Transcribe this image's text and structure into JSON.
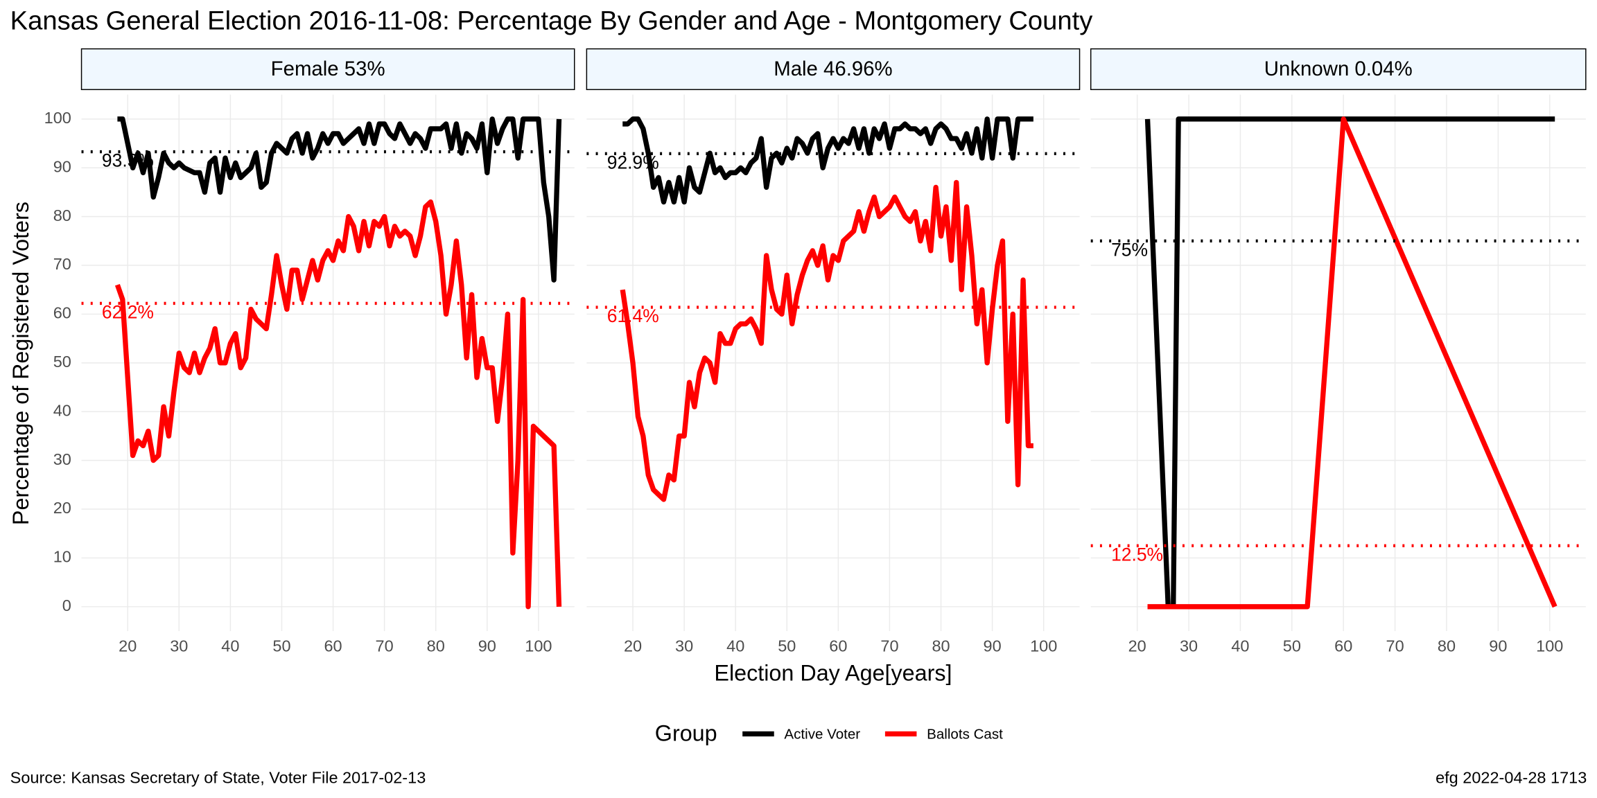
{
  "title": "Kansas General Election 2016-11-08:  Percentage By Gender and Age - Montgomery County",
  "xlabel": "Election Day Age[years]",
  "ylabel": "Percentage of Registered Voters",
  "legend_title": "Group",
  "source": "Source:  Kansas Secretary of State, Voter File  2017-02-13",
  "credit": "efg 2022-04-28 1713",
  "chart_data": [
    {
      "type": "line",
      "title": "Female 53%",
      "xlim": [
        11,
        107
      ],
      "xticks": [
        20,
        30,
        40,
        50,
        60,
        70,
        80,
        90,
        100
      ],
      "ylim": [
        -5,
        105
      ],
      "yticks": [
        0,
        10,
        20,
        30,
        40,
        50,
        60,
        70,
        80,
        90,
        100
      ],
      "grid": true,
      "series": [
        {
          "name": "Active Voter",
          "color": "#000000",
          "x": [
            18,
            19,
            20,
            21,
            22,
            23,
            24,
            25,
            26,
            27,
            28,
            29,
            30,
            31,
            32,
            33,
            34,
            35,
            36,
            37,
            38,
            39,
            40,
            41,
            42,
            43,
            44,
            45,
            46,
            47,
            48,
            49,
            50,
            51,
            52,
            53,
            54,
            55,
            56,
            57,
            58,
            59,
            60,
            61,
            62,
            63,
            64,
            65,
            66,
            67,
            68,
            69,
            70,
            71,
            72,
            73,
            74,
            75,
            76,
            77,
            78,
            79,
            80,
            81,
            82,
            83,
            84,
            85,
            86,
            87,
            88,
            89,
            90,
            91,
            92,
            93,
            94,
            95,
            96,
            97,
            98,
            99,
            100,
            101,
            102,
            103,
            104
          ],
          "values": [
            100,
            100,
            95,
            90,
            93,
            89,
            93,
            84,
            88,
            93,
            91,
            90,
            91,
            90,
            89.5,
            89,
            89,
            85,
            91,
            92,
            85,
            92,
            88,
            91,
            88,
            89,
            90,
            93,
            86,
            87,
            93,
            95,
            94,
            93,
            96,
            97,
            93,
            97,
            92,
            94,
            97,
            95,
            97,
            97,
            95,
            96,
            97,
            98,
            95,
            99,
            95,
            99,
            99,
            97,
            96,
            99,
            97,
            95,
            97,
            96,
            94,
            98,
            98,
            98,
            99,
            94,
            99,
            93,
            97,
            96,
            94,
            99,
            89,
            100,
            95,
            98,
            100,
            100,
            92,
            100,
            100,
            100,
            100,
            87,
            80,
            67,
            100
          ]
        },
        {
          "name": "Ballots Cast",
          "color": "#ff0000",
          "x": [
            18,
            19,
            20,
            21,
            22,
            23,
            24,
            25,
            26,
            27,
            28,
            29,
            30,
            31,
            32,
            33,
            34,
            35,
            36,
            37,
            38,
            39,
            40,
            41,
            42,
            43,
            44,
            45,
            46,
            47,
            48,
            49,
            50,
            51,
            52,
            53,
            54,
            55,
            56,
            57,
            58,
            59,
            60,
            61,
            62,
            63,
            64,
            65,
            66,
            67,
            68,
            69,
            70,
            71,
            72,
            73,
            74,
            75,
            76,
            77,
            78,
            79,
            80,
            81,
            82,
            83,
            84,
            85,
            86,
            87,
            88,
            89,
            90,
            91,
            92,
            93,
            94,
            95,
            96,
            97,
            98,
            99,
            100,
            101,
            102,
            103,
            104
          ],
          "values": [
            66,
            63,
            47,
            31,
            34,
            33,
            36,
            30,
            31,
            41,
            35,
            44,
            52,
            49,
            48,
            52,
            48,
            51,
            53,
            57,
            50,
            50,
            54,
            56,
            49,
            51,
            61,
            59,
            58,
            57,
            64,
            72,
            66,
            61,
            69,
            69,
            63,
            67,
            71,
            67,
            71,
            73,
            71,
            75,
            73,
            80,
            78,
            73,
            79,
            74,
            79,
            78,
            80,
            74,
            78,
            76,
            77,
            76,
            72,
            76,
            82,
            83,
            79,
            72,
            60,
            66,
            75,
            66,
            51,
            64,
            47,
            55,
            49,
            49,
            38,
            47,
            60,
            11,
            30,
            63,
            0,
            37,
            36,
            35,
            34,
            33,
            0
          ]
        }
      ],
      "hlines": [
        {
          "value": 93.3,
          "label": "93.3%",
          "color": "#000000"
        },
        {
          "value": 62.2,
          "label": "62.2%",
          "color": "#ff0000"
        }
      ]
    },
    {
      "type": "line",
      "title": "Male 46.96%",
      "xlim": [
        11,
        107
      ],
      "xticks": [
        20,
        30,
        40,
        50,
        60,
        70,
        80,
        90,
        100
      ],
      "ylim": [
        -5,
        105
      ],
      "yticks": [
        0,
        10,
        20,
        30,
        40,
        50,
        60,
        70,
        80,
        90,
        100
      ],
      "grid": true,
      "series": [
        {
          "name": "Active Voter",
          "color": "#000000",
          "x": [
            18,
            19,
            20,
            21,
            22,
            23,
            24,
            25,
            26,
            27,
            28,
            29,
            30,
            31,
            32,
            33,
            34,
            35,
            36,
            37,
            38,
            39,
            40,
            41,
            42,
            43,
            44,
            45,
            46,
            47,
            48,
            49,
            50,
            51,
            52,
            53,
            54,
            55,
            56,
            57,
            58,
            59,
            60,
            61,
            62,
            63,
            64,
            65,
            66,
            67,
            68,
            69,
            70,
            71,
            72,
            73,
            74,
            75,
            76,
            77,
            78,
            79,
            80,
            81,
            82,
            83,
            84,
            85,
            86,
            87,
            88,
            89,
            90,
            91,
            92,
            93,
            94,
            95,
            96,
            97,
            98
          ],
          "values": [
            99,
            99,
            100,
            100,
            98,
            93,
            86,
            88,
            83,
            87,
            83,
            88,
            83,
            90,
            86,
            85,
            89,
            93,
            89,
            90,
            88,
            89,
            89,
            90,
            89,
            91,
            92,
            96,
            86,
            92,
            93,
            91,
            94,
            92,
            96,
            95,
            93,
            96,
            97,
            90,
            94,
            96,
            94,
            96,
            95,
            98,
            94,
            98,
            93,
            98,
            96,
            99,
            94,
            98,
            98,
            99,
            98,
            98,
            97,
            98,
            95,
            98,
            99,
            98,
            96,
            96,
            94,
            97,
            93,
            98,
            92,
            100,
            92,
            100,
            100,
            100,
            92,
            100,
            100,
            100,
            100
          ]
        },
        {
          "name": "Ballots Cast",
          "color": "#ff0000",
          "x": [
            18,
            19,
            20,
            21,
            22,
            23,
            24,
            25,
            26,
            27,
            28,
            29,
            30,
            31,
            32,
            33,
            34,
            35,
            36,
            37,
            38,
            39,
            40,
            41,
            42,
            43,
            44,
            45,
            46,
            47,
            48,
            49,
            50,
            51,
            52,
            53,
            54,
            55,
            56,
            57,
            58,
            59,
            60,
            61,
            62,
            63,
            64,
            65,
            66,
            67,
            68,
            69,
            70,
            71,
            72,
            73,
            74,
            75,
            76,
            77,
            78,
            79,
            80,
            81,
            82,
            83,
            84,
            85,
            86,
            87,
            88,
            89,
            90,
            91,
            92,
            93,
            94,
            95,
            96,
            97,
            98
          ],
          "values": [
            65,
            58,
            50,
            39,
            35,
            27,
            24,
            23,
            22,
            27,
            26,
            35,
            35,
            46,
            41,
            48,
            51,
            50,
            46,
            56,
            54,
            54,
            57,
            58,
            58,
            59,
            57,
            54,
            72,
            65,
            61,
            60,
            68,
            58,
            64,
            68,
            71,
            73,
            70,
            74,
            67,
            72,
            71,
            75,
            76,
            77,
            81,
            77,
            81,
            84,
            80,
            81,
            82,
            84,
            82,
            80,
            79,
            81,
            75,
            79,
            73,
            86,
            76,
            82,
            71,
            87,
            65,
            82,
            72,
            58,
            65,
            50,
            61,
            70,
            75,
            38,
            60,
            25,
            67,
            33,
            33
          ]
        }
      ],
      "hlines": [
        {
          "value": 92.9,
          "label": "92.9%",
          "color": "#000000"
        },
        {
          "value": 61.4,
          "label": "61.4%",
          "color": "#ff0000"
        }
      ]
    },
    {
      "type": "line",
      "title": "Unknown 0.04%",
      "xlim": [
        11,
        107
      ],
      "xticks": [
        20,
        30,
        40,
        50,
        60,
        70,
        80,
        90,
        100
      ],
      "ylim": [
        -5,
        105
      ],
      "yticks": [
        0,
        10,
        20,
        30,
        40,
        50,
        60,
        70,
        80,
        90,
        100
      ],
      "grid": true,
      "series": [
        {
          "name": "Active Voter",
          "color": "#000000",
          "x": [
            22,
            26,
            27,
            28,
            101
          ],
          "values": [
            100,
            0,
            0,
            100,
            100
          ]
        },
        {
          "name": "Ballots Cast",
          "color": "#ff0000",
          "x": [
            22,
            53,
            60,
            101
          ],
          "values": [
            0,
            0,
            100,
            0
          ]
        }
      ],
      "hlines": [
        {
          "value": 75,
          "label": "75%",
          "color": "#000000"
        },
        {
          "value": 12.5,
          "label": "12.5%",
          "color": "#ff0000"
        }
      ]
    }
  ]
}
